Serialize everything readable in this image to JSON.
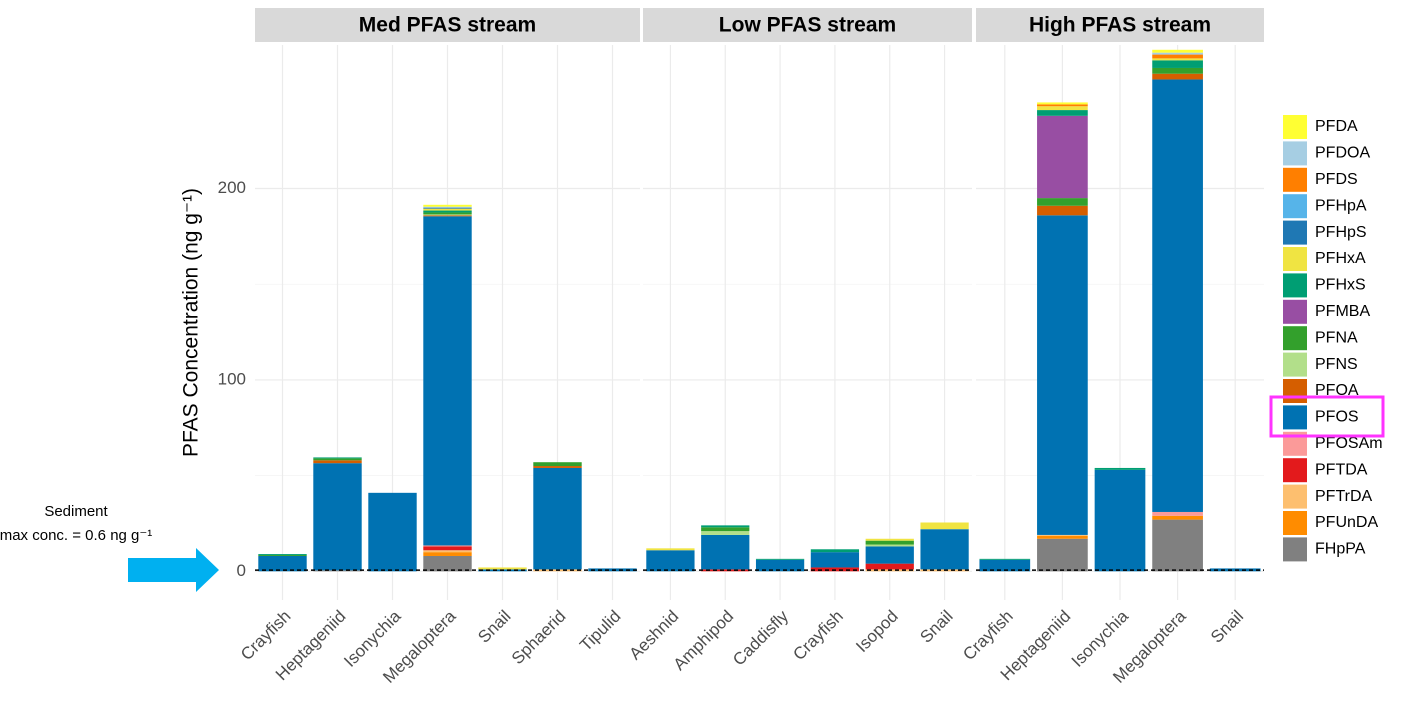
{
  "chart_data": {
    "type": "bar",
    "stacked": true,
    "ylabel": "PFAS Concentration (ng g⁻¹)",
    "ylim": [
      -15,
      275
    ],
    "yticks": [
      0,
      100,
      200
    ],
    "grid": true,
    "legend": "right",
    "annotation": [
      "Sediment",
      "max conc. = 0.6 ng g⁻¹"
    ],
    "sediment_line": 0.6,
    "facets": [
      {
        "title": "Med PFAS stream",
        "categories": [
          "Crayfish",
          "Heptageniid",
          "Isonychia",
          "Megaloptera",
          "Snail",
          "Sphaerid",
          "Tipulid"
        ]
      },
      {
        "title": "Low PFAS stream",
        "categories": [
          "Aeshnid",
          "Amphipod",
          "Caddisfly",
          "Crayfish",
          "Isopod",
          "Snail"
        ]
      },
      {
        "title": "High PFAS stream",
        "categories": [
          "Crayfish",
          "Heptageniid",
          "Isonychia",
          "Megaloptera",
          "Snail"
        ]
      }
    ],
    "series": [
      {
        "name": "PFDA",
        "color": "#ffff33",
        "values": [
          [
            0,
            0,
            0,
            1,
            0,
            0,
            0
          ],
          [
            0,
            0,
            0,
            0,
            0,
            0
          ],
          [
            0,
            1,
            0,
            1.5,
            0
          ]
        ]
      },
      {
        "name": "PFDOA",
        "color": "#a6cee3",
        "values": [
          [
            0,
            0,
            0,
            0.5,
            0,
            0,
            0
          ],
          [
            0,
            0,
            0,
            0,
            0,
            0
          ],
          [
            0,
            0,
            0,
            1,
            0
          ]
        ]
      },
      {
        "name": "PFDS",
        "color": "#ff7f00",
        "values": [
          [
            0,
            0,
            0,
            0,
            0,
            0,
            0
          ],
          [
            0,
            0,
            0,
            0,
            0,
            0
          ],
          [
            0,
            1,
            0,
            2,
            0
          ]
        ]
      },
      {
        "name": "PFHpA",
        "color": "#56b4e9",
        "values": [
          [
            0,
            0,
            0,
            0,
            0,
            0,
            0
          ],
          [
            0,
            0,
            0,
            0,
            0,
            0
          ],
          [
            0,
            0,
            0,
            0,
            0
          ]
        ]
      },
      {
        "name": "PFHpS",
        "color": "#1f78b4",
        "values": [
          [
            0,
            0,
            0,
            0.5,
            0,
            0,
            0
          ],
          [
            0,
            0,
            0,
            0,
            0,
            0
          ],
          [
            0,
            0,
            0,
            0,
            0
          ]
        ]
      },
      {
        "name": "PFHxA",
        "color": "#f0e442",
        "values": [
          [
            0,
            0,
            0,
            1,
            1,
            0,
            0
          ],
          [
            1,
            0,
            0,
            0,
            1,
            3.5
          ],
          [
            0,
            2,
            0,
            1,
            0
          ]
        ]
      },
      {
        "name": "PFHxS",
        "color": "#009e73",
        "values": [
          [
            0.5,
            0.5,
            0,
            1,
            0,
            0,
            0
          ],
          [
            0,
            1,
            0.5,
            1.5,
            0,
            0
          ],
          [
            0.5,
            3,
            1,
            4,
            0
          ]
        ]
      },
      {
        "name": "PFMBA",
        "color": "#984ea3",
        "values": [
          [
            0,
            0,
            0,
            0,
            0,
            0,
            0
          ],
          [
            0,
            0,
            0,
            0,
            0,
            0
          ],
          [
            0,
            43,
            0,
            0,
            0
          ]
        ]
      },
      {
        "name": "PFNA",
        "color": "#33a02c",
        "values": [
          [
            0.5,
            1,
            0,
            1,
            0,
            2,
            0
          ],
          [
            0,
            2,
            0,
            0,
            2,
            0
          ],
          [
            0,
            4,
            0,
            3,
            0
          ]
        ]
      },
      {
        "name": "PFNS",
        "color": "#b2df8a",
        "values": [
          [
            0,
            0,
            0,
            0.5,
            0,
            0,
            0
          ],
          [
            0,
            2,
            0,
            0,
            1,
            0
          ],
          [
            0,
            0,
            0,
            0,
            0
          ]
        ]
      },
      {
        "name": "PFOA",
        "color": "#d55e00",
        "values": [
          [
            0,
            1.5,
            0,
            0.5,
            0,
            1,
            0
          ],
          [
            0,
            0,
            0,
            0,
            0,
            0
          ],
          [
            0,
            5,
            0,
            3,
            0
          ]
        ]
      },
      {
        "name": "PFOS",
        "color": "#0072b2",
        "values": [
          [
            8,
            56,
            41,
            172,
            1,
            53,
            1.5
          ],
          [
            11,
            18,
            6,
            8,
            9,
            21
          ],
          [
            6,
            167,
            53,
            226,
            1.5
          ]
        ]
      },
      {
        "name": "PFOSAm",
        "color": "#fb9a99",
        "values": [
          [
            0,
            0,
            0,
            0.5,
            0,
            0,
            0
          ],
          [
            0,
            0,
            0,
            0,
            0,
            0
          ],
          [
            0,
            0,
            0,
            2,
            0
          ]
        ]
      },
      {
        "name": "PFTDA",
        "color": "#e31a1c",
        "values": [
          [
            0,
            0,
            0,
            2,
            0,
            0,
            0
          ],
          [
            0,
            1,
            0,
            2,
            3,
            0
          ],
          [
            0,
            0,
            0,
            0,
            0
          ]
        ]
      },
      {
        "name": "PFTrDA",
        "color": "#fdbf6f",
        "values": [
          [
            0,
            0,
            0,
            1,
            0,
            1,
            0
          ],
          [
            0,
            0,
            0,
            0,
            1,
            1
          ],
          [
            0,
            0.5,
            0,
            0,
            0
          ]
        ]
      },
      {
        "name": "PFUnDA",
        "color": "#ff8c00",
        "values": [
          [
            0,
            0,
            0,
            2,
            0,
            0,
            0
          ],
          [
            0,
            0,
            0,
            0,
            0,
            0
          ],
          [
            0,
            1.5,
            0,
            2,
            0
          ]
        ]
      },
      {
        "name": "FHpPA",
        "color": "#808080",
        "values": [
          [
            0,
            0.5,
            0,
            8,
            0,
            0,
            0
          ],
          [
            0,
            0,
            0,
            0,
            0,
            0
          ],
          [
            0,
            17,
            0,
            27,
            0
          ]
        ]
      }
    ]
  }
}
